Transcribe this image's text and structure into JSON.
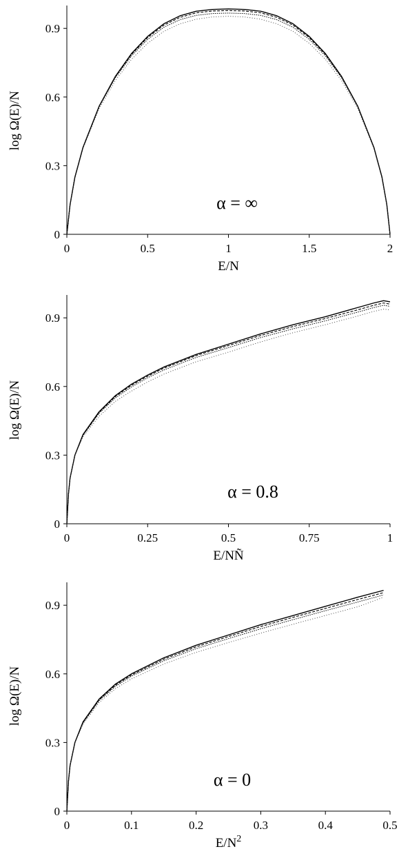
{
  "chart_data": [
    {
      "type": "line",
      "annotation": "α = ∞",
      "xlabel": "E/N",
      "ylabel": "log Ω(E)/N",
      "xlim": [
        0,
        2
      ],
      "ylim": [
        0,
        1.0
      ],
      "xticks": [
        {
          "value": 0,
          "label": "0"
        },
        {
          "value": 0.5,
          "label": "0.5"
        },
        {
          "value": 1,
          "label": "1"
        },
        {
          "value": 1.5,
          "label": "1.5"
        },
        {
          "value": 2,
          "label": "2"
        }
      ],
      "yticks": [
        {
          "value": 0,
          "label": "0"
        },
        {
          "value": 0.3,
          "label": "0.3"
        },
        {
          "value": 0.6,
          "label": "0.6"
        },
        {
          "value": 0.9,
          "label": "0.9"
        }
      ],
      "series": [
        {
          "style": "solid",
          "x": [
            0,
            0.02,
            0.05,
            0.1,
            0.2,
            0.3,
            0.4,
            0.5,
            0.6,
            0.7,
            0.8,
            0.9,
            1.0,
            1.1,
            1.2,
            1.3,
            1.4,
            1.5,
            1.6,
            1.7,
            1.8,
            1.9,
            1.95,
            1.98,
            2.0
          ],
          "y": [
            0,
            0.13,
            0.25,
            0.38,
            0.56,
            0.69,
            0.79,
            0.865,
            0.92,
            0.955,
            0.975,
            0.983,
            0.985,
            0.983,
            0.975,
            0.955,
            0.92,
            0.865,
            0.79,
            0.69,
            0.56,
            0.38,
            0.25,
            0.13,
            0
          ]
        },
        {
          "style": "dashed",
          "x": [
            0,
            0.02,
            0.05,
            0.1,
            0.2,
            0.3,
            0.4,
            0.5,
            0.6,
            0.7,
            0.8,
            0.9,
            1.0,
            1.1,
            1.2,
            1.3,
            1.4,
            1.5,
            1.6,
            1.7,
            1.8,
            1.9,
            1.95,
            1.98,
            2.0
          ],
          "y": [
            0,
            0.13,
            0.25,
            0.38,
            0.56,
            0.688,
            0.786,
            0.86,
            0.914,
            0.948,
            0.968,
            0.976,
            0.978,
            0.976,
            0.968,
            0.948,
            0.914,
            0.86,
            0.786,
            0.688,
            0.56,
            0.38,
            0.25,
            0.13,
            0
          ]
        },
        {
          "style": "dotted",
          "x": [
            0,
            0.02,
            0.05,
            0.1,
            0.2,
            0.3,
            0.4,
            0.5,
            0.6,
            0.7,
            0.8,
            0.9,
            1.0,
            1.1,
            1.2,
            1.3,
            1.4,
            1.5,
            1.6,
            1.7,
            1.8,
            1.9,
            1.95,
            1.98,
            2.0
          ],
          "y": [
            0,
            0.13,
            0.25,
            0.38,
            0.558,
            0.684,
            0.78,
            0.852,
            0.905,
            0.938,
            0.957,
            0.965,
            0.967,
            0.965,
            0.957,
            0.938,
            0.905,
            0.852,
            0.78,
            0.684,
            0.558,
            0.38,
            0.25,
            0.13,
            0
          ]
        },
        {
          "style": "sparse-dotted",
          "x": [
            0,
            0.02,
            0.05,
            0.1,
            0.2,
            0.3,
            0.4,
            0.5,
            0.6,
            0.7,
            0.8,
            0.9,
            1.0,
            1.1,
            1.2,
            1.3,
            1.4,
            1.5,
            1.6,
            1.7,
            1.8,
            1.9,
            1.95,
            1.98,
            2.0
          ],
          "y": [
            0,
            0.13,
            0.245,
            0.375,
            0.55,
            0.672,
            0.765,
            0.835,
            0.887,
            0.92,
            0.94,
            0.95,
            0.953,
            0.95,
            0.94,
            0.92,
            0.887,
            0.835,
            0.765,
            0.672,
            0.55,
            0.375,
            0.245,
            0.13,
            0
          ]
        }
      ]
    },
    {
      "type": "line",
      "annotation": "α = 0.8",
      "xlabel": "E/NÑ",
      "ylabel": "log Ω(E)/N",
      "xlim": [
        0,
        1
      ],
      "ylim": [
        0,
        1.0
      ],
      "xticks": [
        {
          "value": 0,
          "label": "0"
        },
        {
          "value": 0.25,
          "label": "0.25"
        },
        {
          "value": 0.5,
          "label": "0.5"
        },
        {
          "value": 0.75,
          "label": "0.75"
        },
        {
          "value": 1,
          "label": "1"
        }
      ],
      "yticks": [
        {
          "value": 0,
          "label": "0"
        },
        {
          "value": 0.3,
          "label": "0.3"
        },
        {
          "value": 0.6,
          "label": "0.6"
        },
        {
          "value": 0.9,
          "label": "0.9"
        }
      ],
      "series": [
        {
          "style": "solid",
          "x": [
            0,
            0.005,
            0.01,
            0.025,
            0.05,
            0.1,
            0.15,
            0.2,
            0.25,
            0.3,
            0.4,
            0.5,
            0.6,
            0.7,
            0.8,
            0.9,
            0.95,
            0.98,
            1.0
          ],
          "y": [
            0,
            0.13,
            0.2,
            0.3,
            0.39,
            0.49,
            0.56,
            0.61,
            0.65,
            0.685,
            0.74,
            0.785,
            0.83,
            0.87,
            0.905,
            0.945,
            0.965,
            0.975,
            0.97
          ]
        },
        {
          "style": "dashed",
          "x": [
            0,
            0.005,
            0.01,
            0.025,
            0.05,
            0.1,
            0.15,
            0.2,
            0.25,
            0.3,
            0.4,
            0.5,
            0.6,
            0.7,
            0.8,
            0.9,
            0.95,
            0.98,
            1.0
          ],
          "y": [
            0,
            0.13,
            0.2,
            0.3,
            0.388,
            0.487,
            0.556,
            0.605,
            0.645,
            0.68,
            0.735,
            0.779,
            0.823,
            0.862,
            0.897,
            0.935,
            0.955,
            0.965,
            0.96
          ]
        },
        {
          "style": "dotted",
          "x": [
            0,
            0.005,
            0.01,
            0.025,
            0.05,
            0.1,
            0.15,
            0.2,
            0.25,
            0.3,
            0.4,
            0.5,
            0.6,
            0.7,
            0.8,
            0.9,
            0.95,
            0.98,
            1.0
          ],
          "y": [
            0,
            0.13,
            0.2,
            0.3,
            0.386,
            0.483,
            0.55,
            0.598,
            0.638,
            0.672,
            0.727,
            0.77,
            0.814,
            0.852,
            0.887,
            0.925,
            0.945,
            0.955,
            0.95
          ]
        },
        {
          "style": "sparse-dotted",
          "x": [
            0,
            0.005,
            0.01,
            0.025,
            0.05,
            0.1,
            0.15,
            0.2,
            0.25,
            0.3,
            0.4,
            0.5,
            0.6,
            0.7,
            0.8,
            0.9,
            0.95,
            0.98,
            1.0
          ],
          "y": [
            0,
            0.13,
            0.2,
            0.3,
            0.38,
            0.47,
            0.535,
            0.58,
            0.62,
            0.654,
            0.708,
            0.75,
            0.795,
            0.835,
            0.87,
            0.908,
            0.928,
            0.938,
            0.935
          ]
        }
      ]
    },
    {
      "type": "line",
      "annotation": "α = 0",
      "xlabel": "E/N",
      "xlabel_sup": "2",
      "ylabel": "log Ω(E)/N",
      "xlim": [
        0,
        0.5
      ],
      "ylim": [
        0,
        1.0
      ],
      "xticks": [
        {
          "value": 0,
          "label": "0"
        },
        {
          "value": 0.1,
          "label": "0.1"
        },
        {
          "value": 0.2,
          "label": "0.2"
        },
        {
          "value": 0.3,
          "label": "0.3"
        },
        {
          "value": 0.4,
          "label": "0.4"
        },
        {
          "value": 0.5,
          "label": "0.5"
        }
      ],
      "yticks": [
        {
          "value": 0,
          "label": "0"
        },
        {
          "value": 0.3,
          "label": "0.3"
        },
        {
          "value": 0.6,
          "label": "0.6"
        },
        {
          "value": 0.9,
          "label": "0.9"
        }
      ],
      "series": [
        {
          "style": "solid",
          "x": [
            0,
            0.0025,
            0.005,
            0.0125,
            0.025,
            0.05,
            0.075,
            0.1,
            0.15,
            0.2,
            0.25,
            0.3,
            0.35,
            0.4,
            0.45,
            0.49
          ],
          "y": [
            0,
            0.13,
            0.2,
            0.3,
            0.39,
            0.49,
            0.555,
            0.6,
            0.67,
            0.725,
            0.77,
            0.815,
            0.855,
            0.895,
            0.935,
            0.965
          ]
        },
        {
          "style": "dashed",
          "x": [
            0,
            0.0025,
            0.005,
            0.0125,
            0.025,
            0.05,
            0.075,
            0.1,
            0.15,
            0.2,
            0.25,
            0.3,
            0.35,
            0.4,
            0.45,
            0.49
          ],
          "y": [
            0,
            0.13,
            0.2,
            0.3,
            0.388,
            0.487,
            0.55,
            0.595,
            0.664,
            0.718,
            0.763,
            0.807,
            0.847,
            0.886,
            0.925,
            0.955
          ]
        },
        {
          "style": "dotted",
          "x": [
            0,
            0.0025,
            0.005,
            0.0125,
            0.025,
            0.05,
            0.075,
            0.1,
            0.15,
            0.2,
            0.25,
            0.3,
            0.35,
            0.4,
            0.45,
            0.49
          ],
          "y": [
            0,
            0.13,
            0.2,
            0.3,
            0.385,
            0.483,
            0.545,
            0.59,
            0.657,
            0.71,
            0.754,
            0.797,
            0.837,
            0.876,
            0.914,
            0.945
          ]
        },
        {
          "style": "sparse-dotted",
          "x": [
            0,
            0.0025,
            0.005,
            0.0125,
            0.025,
            0.05,
            0.075,
            0.1,
            0.15,
            0.2,
            0.25,
            0.3,
            0.35,
            0.4,
            0.45,
            0.49
          ],
          "y": [
            0,
            0.13,
            0.2,
            0.3,
            0.38,
            0.475,
            0.535,
            0.578,
            0.643,
            0.694,
            0.737,
            0.778,
            0.817,
            0.855,
            0.893,
            0.935
          ]
        }
      ]
    }
  ]
}
